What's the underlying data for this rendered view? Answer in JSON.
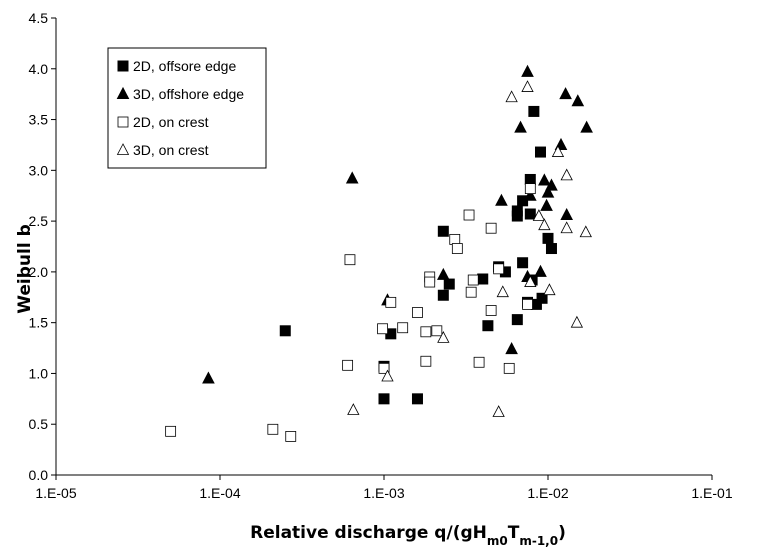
{
  "chart_data": {
    "type": "scatter",
    "title": "",
    "xlabel": {
      "base": "Relative discharge q/(gH",
      "sub1": "m0",
      "mid": "T",
      "sub2": "m-1,0",
      "end": ")"
    },
    "ylabel": "Weibull b",
    "x_scale": "log",
    "xlim": [
      1e-05,
      0.1
    ],
    "ylim": [
      0,
      4.5
    ],
    "x_ticks": [
      1e-05,
      0.0001,
      0.001,
      0.01,
      0.1
    ],
    "x_tick_labels": [
      "1.E-05",
      "1.E-04",
      "1.E-03",
      "1.E-02",
      "1.E-01"
    ],
    "y_ticks": [
      0,
      0.5,
      1,
      1.5,
      2,
      2.5,
      3,
      3.5,
      4,
      4.5
    ],
    "y_tick_labels": [
      "0.0",
      "0.5",
      "1.0",
      "1.5",
      "2.0",
      "2.5",
      "3.0",
      "3.5",
      "4.0",
      "4.5"
    ],
    "grid": false,
    "legend_position": "top-left",
    "series": [
      {
        "name": "2D, offsore edge",
        "marker": "square-filled",
        "points": [
          [
            0.00025,
            1.42
          ],
          [
            0.001,
            0.75
          ],
          [
            0.001,
            1.07
          ],
          [
            0.0011,
            1.39
          ],
          [
            0.0016,
            0.75
          ],
          [
            0.0023,
            2.4
          ],
          [
            0.0023,
            1.77
          ],
          [
            0.0025,
            1.88
          ],
          [
            0.004,
            1.93
          ],
          [
            0.0043,
            1.47
          ],
          [
            0.005,
            2.05
          ],
          [
            0.0055,
            2.0
          ],
          [
            0.0065,
            2.55
          ],
          [
            0.0065,
            2.6
          ],
          [
            0.0065,
            1.53
          ],
          [
            0.007,
            2.7
          ],
          [
            0.007,
            2.09
          ],
          [
            0.0075,
            1.7
          ],
          [
            0.0078,
            2.57
          ],
          [
            0.0078,
            2.91
          ],
          [
            0.008,
            1.92
          ],
          [
            0.0082,
            3.58
          ],
          [
            0.0085,
            1.68
          ],
          [
            0.009,
            3.18
          ],
          [
            0.0092,
            1.74
          ],
          [
            0.01,
            2.33
          ],
          [
            0.0105,
            2.23
          ]
        ]
      },
      {
        "name": "3D, offshore edge",
        "marker": "triangle-filled",
        "points": [
          [
            8.5e-05,
            0.95
          ],
          [
            0.00064,
            2.92
          ],
          [
            0.00105,
            1.72
          ],
          [
            0.0023,
            1.97
          ],
          [
            0.0052,
            2.7
          ],
          [
            0.006,
            1.24
          ],
          [
            0.0068,
            3.42
          ],
          [
            0.0075,
            3.97
          ],
          [
            0.0075,
            1.95
          ],
          [
            0.0078,
            2.75
          ],
          [
            0.009,
            2.0
          ],
          [
            0.0095,
            2.9
          ],
          [
            0.0098,
            2.65
          ],
          [
            0.01,
            2.78
          ],
          [
            0.0105,
            2.85
          ],
          [
            0.012,
            3.25
          ],
          [
            0.0128,
            3.75
          ],
          [
            0.013,
            2.56
          ],
          [
            0.0152,
            3.68
          ],
          [
            0.0172,
            3.42
          ]
        ]
      },
      {
        "name": "2D, on crest",
        "marker": "square-open",
        "points": [
          [
            5e-05,
            0.43
          ],
          [
            0.00021,
            0.45
          ],
          [
            0.00027,
            0.38
          ],
          [
            0.0006,
            1.08
          ],
          [
            0.00062,
            2.12
          ],
          [
            0.00098,
            1.44
          ],
          [
            0.001,
            1.05
          ],
          [
            0.0011,
            1.7
          ],
          [
            0.0013,
            1.45
          ],
          [
            0.0016,
            1.6
          ],
          [
            0.0018,
            1.12
          ],
          [
            0.0018,
            1.41
          ],
          [
            0.0019,
            1.95
          ],
          [
            0.0019,
            1.9
          ],
          [
            0.0021,
            1.42
          ],
          [
            0.0027,
            2.32
          ],
          [
            0.0028,
            2.23
          ],
          [
            0.0033,
            2.56
          ],
          [
            0.0034,
            1.8
          ],
          [
            0.0035,
            1.92
          ],
          [
            0.0038,
            1.11
          ],
          [
            0.0045,
            2.43
          ],
          [
            0.0045,
            1.62
          ],
          [
            0.005,
            2.03
          ],
          [
            0.0058,
            1.05
          ],
          [
            0.0075,
            1.68
          ],
          [
            0.0078,
            2.82
          ]
        ]
      },
      {
        "name": "3D, on crest",
        "marker": "triangle-open",
        "points": [
          [
            0.00065,
            0.64
          ],
          [
            0.00105,
            0.97
          ],
          [
            0.0023,
            1.35
          ],
          [
            0.005,
            0.62
          ],
          [
            0.0053,
            1.8
          ],
          [
            0.006,
            3.72
          ],
          [
            0.0075,
            3.82
          ],
          [
            0.0078,
            1.9
          ],
          [
            0.0088,
            2.55
          ],
          [
            0.0095,
            2.46
          ],
          [
            0.0102,
            1.82
          ],
          [
            0.0115,
            3.18
          ],
          [
            0.013,
            2.95
          ],
          [
            0.013,
            2.43
          ],
          [
            0.015,
            1.5
          ],
          [
            0.017,
            2.39
          ]
        ]
      }
    ]
  }
}
